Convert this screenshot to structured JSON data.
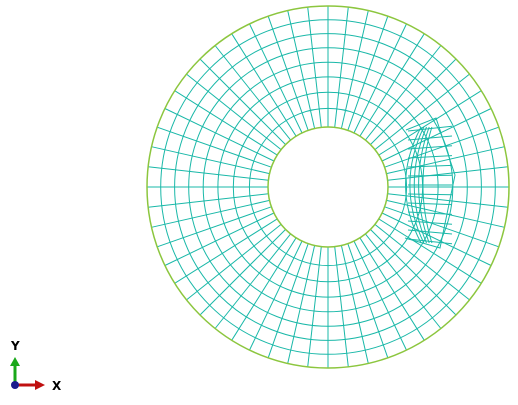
{
  "viewport": {
    "background": "#ffffff",
    "mesh_color": "#19b8a8",
    "edge_color": "#8cc63e",
    "mesh": {
      "type": "annular-quad-mesh",
      "radial_divisions": 8,
      "circumferential_divisions": 56,
      "refined_region": "right-of-hole"
    }
  },
  "triad": {
    "y_label": "Y",
    "x_label": "X",
    "y_color": "#1aa81a",
    "x_color": "#c01010",
    "origin_color": "#1a1a8c"
  }
}
